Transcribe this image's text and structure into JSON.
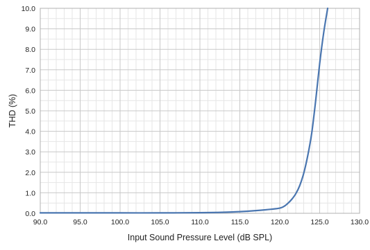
{
  "chart_data": {
    "type": "line",
    "title": "",
    "xlabel": "Input Sound Pressure Level (dB SPL)",
    "ylabel": "THD (%)",
    "xlim": [
      90.0,
      130.0
    ],
    "ylim": [
      0.0,
      10.0
    ],
    "x_ticks": [
      "90.0",
      "95.0",
      "100.0",
      "105.0",
      "110.0",
      "115.0",
      "120.0",
      "125.0",
      "130.0"
    ],
    "y_ticks": [
      "0.0",
      "1.0",
      "2.0",
      "3.0",
      "4.0",
      "5.0",
      "6.0",
      "7.0",
      "8.0",
      "9.0",
      "10.0"
    ],
    "grid": true,
    "series": [
      {
        "color": "#4a76b0",
        "x": [
          90.0,
          95.0,
          100.0,
          105.0,
          110.0,
          113.0,
          115.0,
          117.0,
          119.0,
          120.0,
          120.5,
          121.0,
          121.5,
          122.0,
          122.5,
          123.0,
          123.5,
          124.0,
          124.5,
          125.0,
          125.5,
          126.0
        ],
        "y": [
          0.02,
          0.02,
          0.02,
          0.02,
          0.03,
          0.05,
          0.08,
          0.13,
          0.2,
          0.25,
          0.33,
          0.48,
          0.68,
          0.95,
          1.35,
          1.95,
          2.8,
          3.9,
          5.5,
          7.3,
          8.8,
          10.0
        ]
      }
    ]
  }
}
